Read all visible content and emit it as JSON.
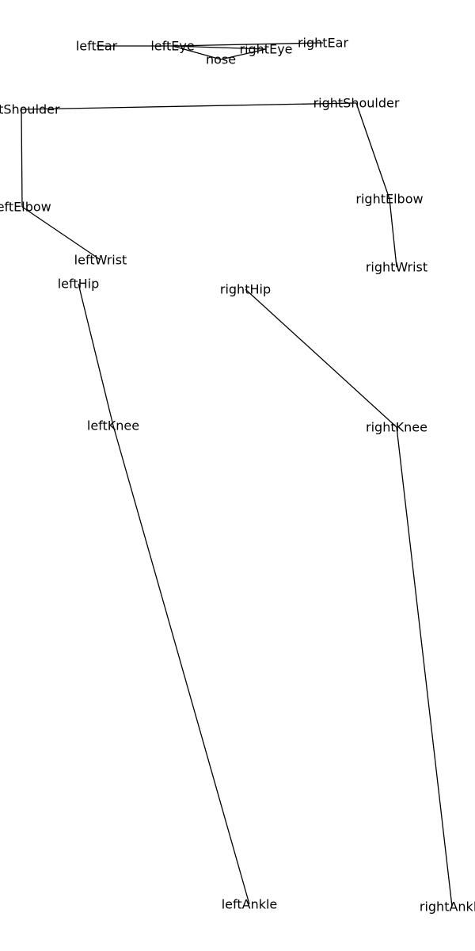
{
  "colors": {
    "background": "#ffffff",
    "line": "#000000",
    "text": "#000000"
  },
  "keypoints": [
    {
      "id": "nose",
      "label": "nose"
    },
    {
      "id": "leftEye",
      "label": "leftEye"
    },
    {
      "id": "rightEye",
      "label": "rightEye"
    },
    {
      "id": "leftEar",
      "label": "leftEar"
    },
    {
      "id": "rightEar",
      "label": "rightEar"
    },
    {
      "id": "leftShoulder",
      "label": "leftShoulder"
    },
    {
      "id": "rightShoulder",
      "label": "rightShoulder"
    },
    {
      "id": "leftElbow",
      "label": "leftElbow"
    },
    {
      "id": "rightElbow",
      "label": "rightElbow"
    },
    {
      "id": "leftWrist",
      "label": "leftWrist"
    },
    {
      "id": "rightWrist",
      "label": "rightWrist"
    },
    {
      "id": "leftHip",
      "label": "leftHip"
    },
    {
      "id": "rightHip",
      "label": "rightHip"
    },
    {
      "id": "leftKnee",
      "label": "leftKnee"
    },
    {
      "id": "rightKnee",
      "label": "rightKnee"
    },
    {
      "id": "leftAnkle",
      "label": "leftAnkle"
    },
    {
      "id": "rightAnkle",
      "label": "rightAnkle"
    }
  ],
  "edges": [
    [
      "leftEar",
      "leftEye"
    ],
    [
      "leftEye",
      "rightEar"
    ],
    [
      "leftEye",
      "rightEye"
    ],
    [
      "leftEye",
      "nose"
    ],
    [
      "nose",
      "rightEye"
    ],
    [
      "leftShoulder",
      "rightShoulder"
    ],
    [
      "leftShoulder",
      "leftElbow"
    ],
    [
      "leftElbow",
      "leftWrist"
    ],
    [
      "rightShoulder",
      "rightElbow"
    ],
    [
      "rightElbow",
      "rightWrist"
    ],
    [
      "leftHip",
      "leftKnee"
    ],
    [
      "leftKnee",
      "leftAnkle"
    ],
    [
      "rightHip",
      "rightKnee"
    ],
    [
      "rightKnee",
      "rightAnkle"
    ]
  ]
}
